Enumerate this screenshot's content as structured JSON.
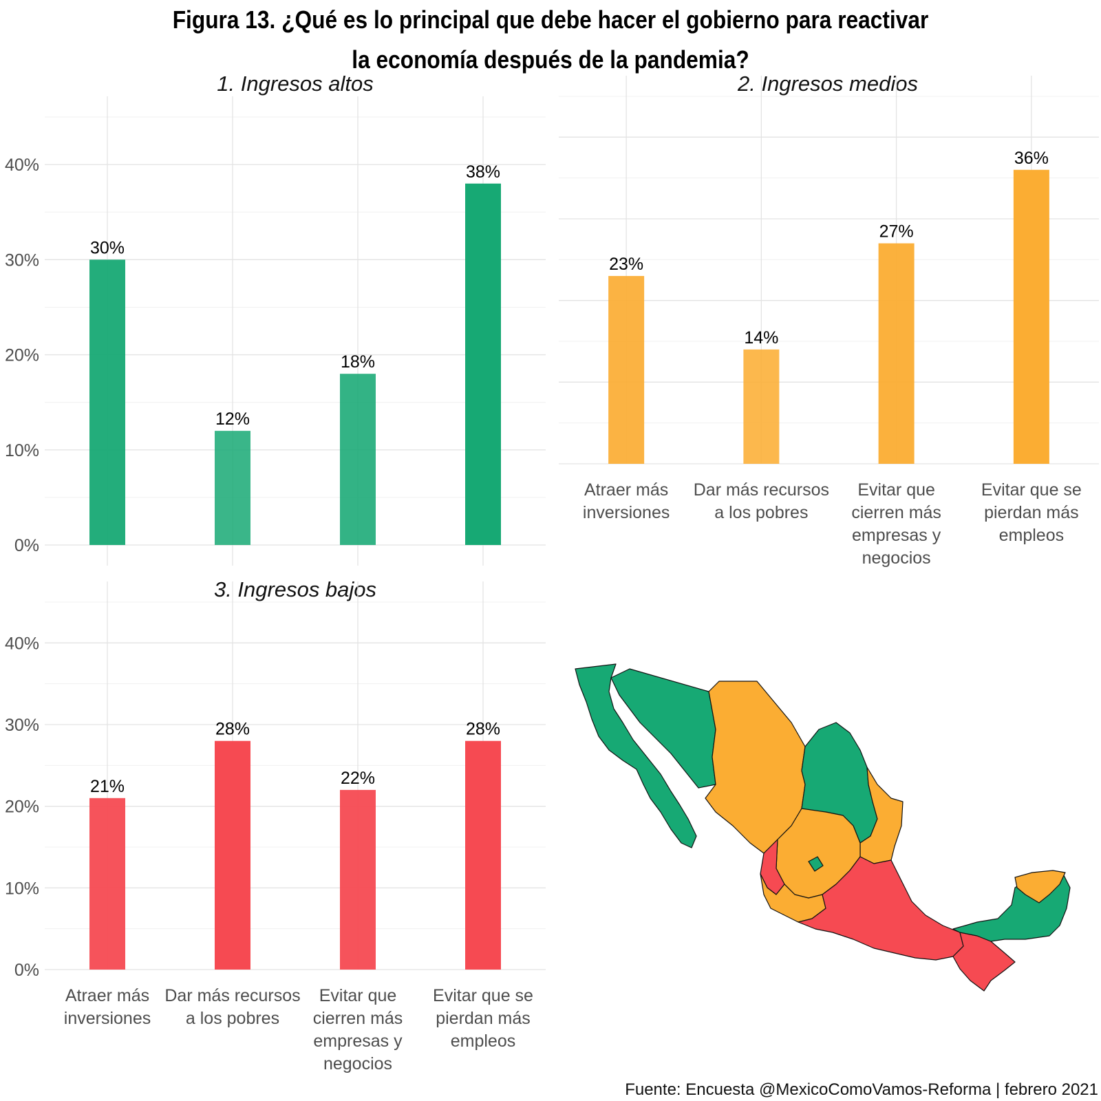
{
  "title_lines": [
    "Figura 13. ¿Qué es lo principal que debe hacer el gobierno para reactivar",
    "la economía después de la pandemia?"
  ],
  "source": "Fuente: Encuesta @MexicoComoVamos-Reforma | febrero 2021",
  "colors": {
    "altos": "#17A974",
    "medios": "#FBAD33",
    "bajos": "#F64A52"
  },
  "chart_data": [
    {
      "type": "bar",
      "title": "1. Ingresos altos",
      "categories": [
        [
          "Atraer más",
          "inversiones"
        ],
        [
          "Dar más recursos",
          "a los pobres"
        ],
        [
          "Evitar que",
          "cierren más",
          "empresas y",
          "negocios"
        ],
        [
          "Evitar que se",
          "pierdan más",
          "empleos"
        ]
      ],
      "values": [
        30,
        12,
        18,
        38
      ],
      "value_labels": [
        "30%",
        "12%",
        "18%",
        "38%"
      ],
      "ylim": [
        0,
        45
      ],
      "yticks": [
        0,
        10,
        20,
        30,
        40
      ],
      "ytick_labels": [
        "0%",
        "10%",
        "20%",
        "30%",
        "40%"
      ],
      "show_category_labels": false,
      "grid": true
    },
    {
      "type": "bar",
      "title": "2. Ingresos medios",
      "categories": [
        [
          "Atraer más",
          "inversiones"
        ],
        [
          "Dar más recursos",
          "a los pobres"
        ],
        [
          "Evitar que",
          "cierren más",
          "empresas y",
          "negocios"
        ],
        [
          "Evitar que se",
          "pierdan más",
          "empleos"
        ]
      ],
      "values": [
        23,
        14,
        27,
        36
      ],
      "value_labels": [
        "23%",
        "14%",
        "27%",
        "36%"
      ],
      "ylim": [
        0,
        45
      ],
      "show_category_labels": true,
      "grid": true
    },
    {
      "type": "bar",
      "title": "3. Ingresos bajos",
      "categories": [
        [
          "Atraer más",
          "inversiones"
        ],
        [
          "Dar más recursos",
          "a los pobres"
        ],
        [
          "Evitar que",
          "cierren más",
          "empresas y",
          "negocios"
        ],
        [
          "Evitar que se",
          "pierdan más",
          "empleos"
        ]
      ],
      "values": [
        21,
        28,
        22,
        28
      ],
      "value_labels": [
        "21%",
        "28%",
        "22%",
        "28%"
      ],
      "ylim": [
        0,
        45
      ],
      "yticks": [
        0,
        10,
        20,
        30,
        40
      ],
      "ytick_labels": [
        "0%",
        "10%",
        "20%",
        "30%",
        "40%"
      ],
      "show_category_labels": true,
      "grid": true
    }
  ],
  "map": {
    "region": "Mexico",
    "legend_groups": [
      "Ingresos altos",
      "Ingresos medios",
      "Ingresos bajos"
    ]
  }
}
